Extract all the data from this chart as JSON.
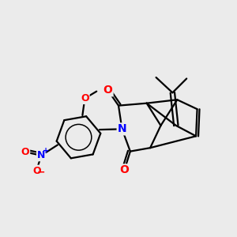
{
  "background_color": "#ebebeb",
  "atom_colors": {
    "O": "#ff0000",
    "N": "#0000ff",
    "C": "#000000"
  },
  "bond_color": "#000000",
  "bond_width": 1.6,
  "figsize": [
    3.0,
    3.0
  ],
  "dpi": 100
}
